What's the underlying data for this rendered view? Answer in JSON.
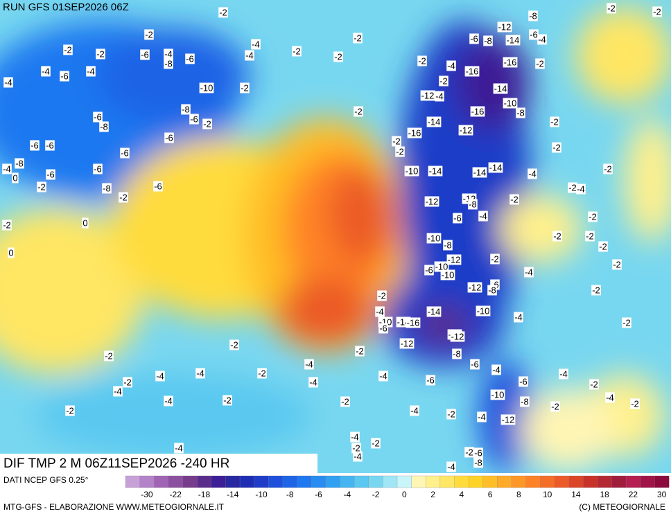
{
  "header": {
    "title": "RUN GFS 01SEP2026 06Z"
  },
  "map": {
    "field_title": "DIF TMP 2 M 06Z11SEP2026 -240 HR",
    "contour_labels": [
      -2,
      -8,
      -2,
      -2,
      -2,
      -12,
      -2,
      -6,
      -6,
      -8,
      -14,
      -4,
      -2,
      -2,
      -6,
      -4,
      -6,
      -8,
      -4,
      -4,
      -2,
      -2,
      -2,
      -4,
      -16,
      -2,
      -4,
      -6,
      -4,
      -16,
      -2,
      -10,
      -2,
      -14,
      -4,
      -12,
      -4,
      -10,
      -8,
      -16,
      -2,
      -8,
      -6,
      -8,
      -6,
      -2,
      -2,
      -14,
      -12,
      -16,
      -6,
      -2,
      -6,
      -6,
      -6,
      -2,
      -2,
      -8,
      -4,
      -10,
      -14,
      -14,
      -14,
      -4,
      -2,
      -6,
      -6,
      0,
      -2,
      -8,
      -2,
      -6,
      -2,
      -4,
      -12,
      -12,
      -8,
      -2,
      -2,
      0,
      -6,
      -4,
      -2,
      -10,
      -2,
      -2,
      -8,
      -2,
      0,
      -12,
      -2,
      -10,
      -6,
      -10,
      -2,
      -4,
      -12,
      -6,
      -8,
      -2,
      -2,
      -4,
      -14,
      -10,
      -4,
      -10,
      -14,
      -16,
      -6,
      -2,
      -14,
      -12,
      -12,
      -2,
      -2,
      -8,
      -2,
      -4,
      -6,
      -4,
      -4,
      -4,
      -2,
      -4,
      -4,
      -2,
      -4,
      -4,
      -6,
      -6,
      -2,
      -4,
      -2,
      -2,
      -10,
      -8,
      -4,
      -2,
      -2,
      -2,
      -4,
      -2,
      -4,
      -12,
      -4,
      -2,
      -2,
      -4,
      -2,
      -6,
      -4,
      -8,
      -4
    ]
  },
  "legend": {
    "source": "DATI NCEP GFS 0.25°",
    "colors": [
      "#c8a0d8",
      "#b482c8",
      "#a064b4",
      "#8c50a0",
      "#783c8c",
      "#5a2d8c",
      "#3c1e96",
      "#2828a0",
      "#1e2db4",
      "#1e3cc8",
      "#1e50dc",
      "#1e64e6",
      "#1e78f0",
      "#288cf0",
      "#32a0f0",
      "#46b4f0",
      "#5ac8f0",
      "#78d7f0",
      "#a0e6f5",
      "#c8f5fa",
      "#fff5b4",
      "#fff08c",
      "#ffe664",
      "#ffdc3c",
      "#ffd228",
      "#ffbe28",
      "#ffaa28",
      "#ff9628",
      "#ff8228",
      "#f56e28",
      "#eb5a28",
      "#dc4628",
      "#c83228",
      "#b42832",
      "#a01e3c",
      "#b41e50",
      "#a01446",
      "#8c0a3c"
    ],
    "ticks": [
      -30,
      -22,
      -18,
      -14,
      -10,
      -8,
      -6,
      -4,
      -2,
      0,
      2,
      4,
      6,
      8,
      10,
      14,
      18,
      22,
      30
    ]
  },
  "footer": {
    "left": "MTG-GFS - ELABORAZIONE WWW.METEOGIORNALE.IT",
    "right": "(C) METEOGIORNALE"
  }
}
